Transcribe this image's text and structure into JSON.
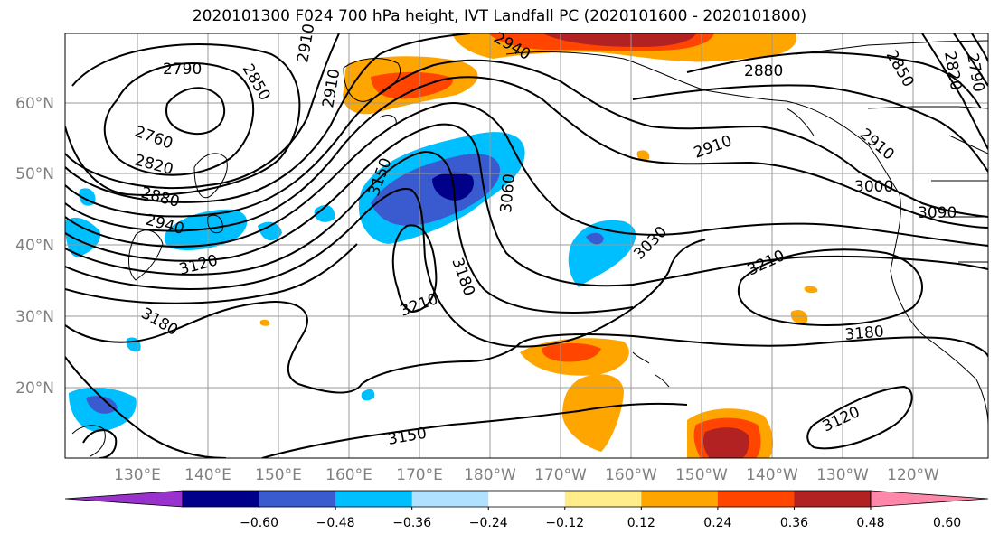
{
  "title": "2020101300 F024 700 hPa height, IVT Landfall PC (2020101600 - 2020101800)",
  "latitude_labels": [
    "60°N",
    "50°N",
    "40°N",
    "30°N",
    "20°N"
  ],
  "longitude_labels": [
    "130°E",
    "140°E",
    "150°E",
    "160°E",
    "170°E",
    "180°W",
    "170°W",
    "160°W",
    "150°W",
    "140°W",
    "130°W",
    "120°W"
  ],
  "colorbar": {
    "ticks": [
      "−0.60",
      "−0.48",
      "−0.36",
      "−0.24",
      "−0.12",
      "0.12",
      "0.24",
      "0.36",
      "0.48",
      "0.60"
    ],
    "colors": [
      "#9932cc",
      "#00008b",
      "#3a5bd0",
      "#00bfff",
      "#b0e2ff",
      "#ffffff",
      "#ffec8b",
      "#ffa500",
      "#ff4500",
      "#b22222",
      "#ff88aa"
    ]
  },
  "contour_labels": [
    "2790",
    "2850",
    "2910",
    "2910",
    "2940",
    "2760",
    "2820",
    "2880",
    "2940",
    "3120",
    "3180",
    "3150",
    "3060",
    "3180",
    "3210",
    "2880",
    "2850",
    "2820",
    "2790",
    "2910",
    "2910",
    "3000",
    "3090",
    "3030",
    "3210",
    "3180",
    "3150",
    "3120"
  ]
}
